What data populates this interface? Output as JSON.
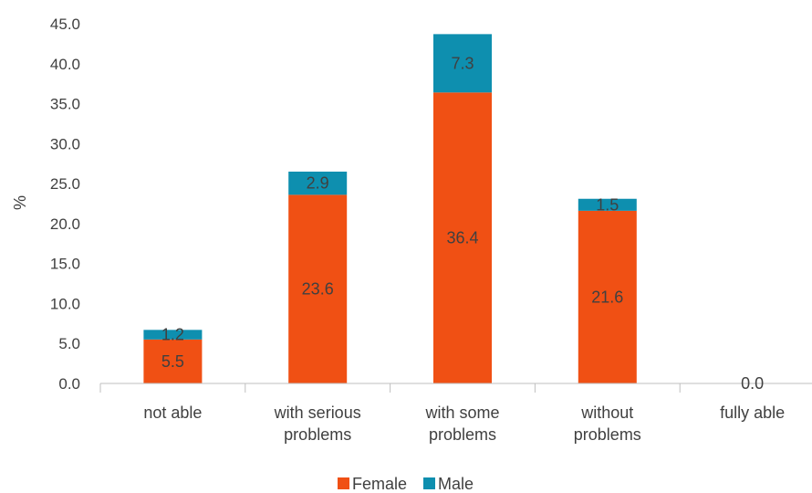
{
  "chart_data": {
    "type": "bar",
    "stacked": true,
    "categories": [
      [
        "not able"
      ],
      [
        "with serious",
        "problems"
      ],
      [
        "with some",
        "problems"
      ],
      [
        "without",
        "problems"
      ],
      [
        "fully able"
      ]
    ],
    "series": [
      {
        "name": "Female",
        "color": "#F05014",
        "values": [
          5.5,
          23.6,
          36.4,
          21.6,
          0.0
        ]
      },
      {
        "name": "Male",
        "color": "#0E8FAF",
        "values": [
          1.2,
          2.9,
          7.3,
          1.5,
          0.0
        ]
      }
    ],
    "data_labels": [
      [
        "5.5",
        "23.6",
        "36.4",
        "21.6",
        ""
      ],
      [
        "1.2",
        "2.9",
        "7.3",
        "1.5",
        "0.0"
      ]
    ],
    "ylabel": "%",
    "xlabel": "",
    "ylim": [
      0,
      45
    ],
    "yticks": [
      "0.0",
      "5.0",
      "10.0",
      "15.0",
      "20.0",
      "25.0",
      "30.0",
      "35.0",
      "40.0",
      "45.0"
    ],
    "grid": false,
    "legend": "bottom"
  }
}
